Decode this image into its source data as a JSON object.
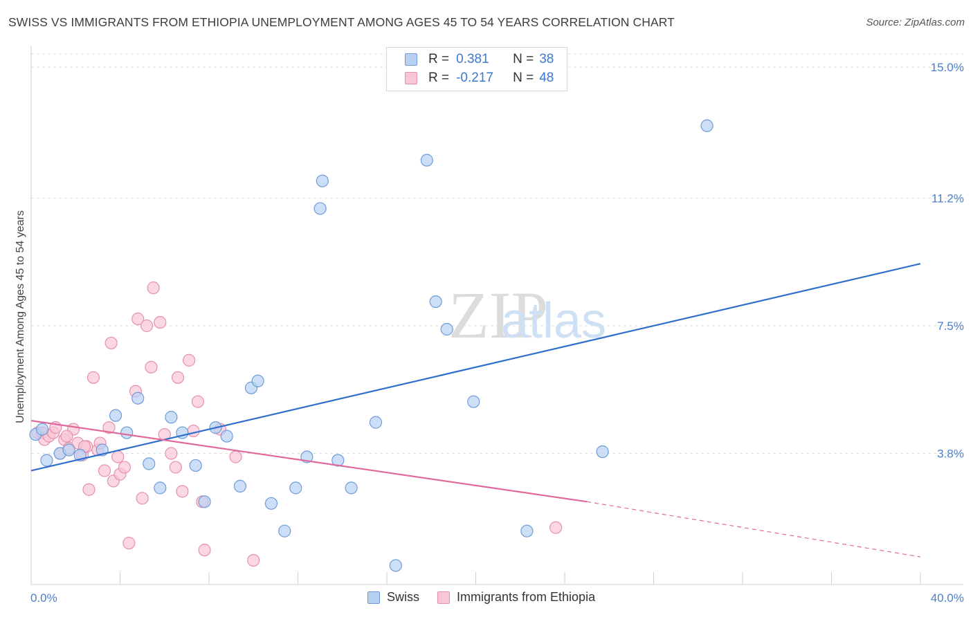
{
  "title": "SWISS VS IMMIGRANTS FROM ETHIOPIA UNEMPLOYMENT AMONG AGES 45 TO 54 YEARS CORRELATION CHART",
  "source": "Source: ZipAtlas.com",
  "watermark": {
    "zip": "ZIP",
    "atlas": "atlas"
  },
  "legend": {
    "swiss": {
      "r_label": "R =",
      "r_value": "0.381",
      "n_label": "N =",
      "n_value": "38"
    },
    "ethiopia": {
      "r_label": "R =",
      "r_value": "-0.217",
      "n_label": "N =",
      "n_value": "48"
    }
  },
  "colors": {
    "swiss_fill": "#b8d1f3",
    "swiss_stroke": "#6e9bd8",
    "swiss_line": "#2f6fcc",
    "eth_fill": "#f8c6d6",
    "eth_stroke": "#e690ae",
    "eth_line": "#e0689a",
    "grid": "#dddddd",
    "tick": "#4a7fcf"
  },
  "chart_data": {
    "type": "scatter",
    "title": "SWISS VS IMMIGRANTS FROM ETHIOPIA UNEMPLOYMENT AMONG AGES 45 TO 54 YEARS CORRELATION CHART",
    "xlabel": "",
    "ylabel": "Unemployment Among Ages 45 to 54 years",
    "xlim": [
      0,
      40
    ],
    "ylim": [
      0,
      15
    ],
    "x_tick_labels": [
      {
        "value": 0,
        "label": "0.0%"
      },
      {
        "value": 40,
        "label": "40.0%"
      }
    ],
    "y_ticks": [
      {
        "value": 3.8,
        "label": "3.8%"
      },
      {
        "value": 7.5,
        "label": "7.5%"
      },
      {
        "value": 11.2,
        "label": "11.2%"
      },
      {
        "value": 15.0,
        "label": "15.0%"
      }
    ],
    "series": [
      {
        "name": "Swiss",
        "r": 0.381,
        "n": 38,
        "points": [
          [
            0.2,
            4.35
          ],
          [
            0.7,
            3.6
          ],
          [
            1.3,
            3.8
          ],
          [
            1.7,
            3.9
          ],
          [
            2.2,
            3.75
          ],
          [
            3.2,
            3.9
          ],
          [
            3.8,
            4.9
          ],
          [
            4.3,
            4.4
          ],
          [
            4.8,
            5.4
          ],
          [
            5.3,
            3.5
          ],
          [
            5.8,
            2.8
          ],
          [
            6.3,
            4.85
          ],
          [
            6.8,
            4.4
          ],
          [
            7.4,
            3.45
          ],
          [
            7.8,
            2.4
          ],
          [
            8.3,
            4.55
          ],
          [
            8.8,
            4.3
          ],
          [
            9.4,
            2.85
          ],
          [
            9.9,
            5.7
          ],
          [
            10.2,
            5.9
          ],
          [
            10.8,
            2.35
          ],
          [
            11.4,
            1.55
          ],
          [
            11.9,
            2.8
          ],
          [
            12.4,
            3.7
          ],
          [
            13.0,
            10.9
          ],
          [
            13.1,
            11.7
          ],
          [
            13.8,
            3.6
          ],
          [
            14.4,
            2.8
          ],
          [
            15.5,
            4.7
          ],
          [
            16.4,
            0.55
          ],
          [
            17.8,
            12.3
          ],
          [
            18.2,
            8.2
          ],
          [
            18.7,
            7.4
          ],
          [
            19.9,
            5.3
          ],
          [
            22.3,
            1.55
          ],
          [
            25.7,
            3.85
          ],
          [
            30.4,
            13.3
          ],
          [
            0.5,
            4.5
          ]
        ]
      },
      {
        "name": "Immigrants from Ethiopia",
        "r": -0.217,
        "n": 48,
        "points": [
          [
            0.3,
            4.4
          ],
          [
            0.5,
            4.4
          ],
          [
            0.6,
            4.2
          ],
          [
            0.8,
            4.3
          ],
          [
            1.0,
            4.4
          ],
          [
            1.1,
            4.55
          ],
          [
            1.3,
            3.8
          ],
          [
            1.5,
            4.2
          ],
          [
            1.7,
            3.95
          ],
          [
            1.9,
            4.5
          ],
          [
            2.1,
            4.1
          ],
          [
            2.3,
            3.75
          ],
          [
            2.5,
            4.0
          ],
          [
            2.6,
            2.75
          ],
          [
            2.8,
            6.0
          ],
          [
            3.0,
            3.9
          ],
          [
            3.1,
            4.1
          ],
          [
            3.3,
            3.3
          ],
          [
            3.5,
            4.55
          ],
          [
            3.6,
            7.0
          ],
          [
            3.7,
            3.0
          ],
          [
            3.9,
            3.7
          ],
          [
            4.0,
            3.2
          ],
          [
            4.2,
            3.4
          ],
          [
            4.4,
            1.2
          ],
          [
            4.7,
            5.6
          ],
          [
            4.8,
            7.7
          ],
          [
            5.0,
            2.5
          ],
          [
            5.2,
            7.5
          ],
          [
            5.4,
            6.3
          ],
          [
            5.5,
            8.6
          ],
          [
            5.8,
            7.6
          ],
          [
            6.0,
            4.35
          ],
          [
            6.3,
            3.8
          ],
          [
            6.5,
            3.4
          ],
          [
            6.6,
            6.0
          ],
          [
            6.8,
            2.7
          ],
          [
            7.1,
            6.5
          ],
          [
            7.3,
            4.45
          ],
          [
            7.5,
            5.3
          ],
          [
            7.7,
            2.4
          ],
          [
            7.8,
            1.0
          ],
          [
            8.5,
            4.5
          ],
          [
            9.2,
            3.7
          ],
          [
            10.0,
            0.7
          ],
          [
            23.6,
            1.65
          ],
          [
            1.6,
            4.3
          ],
          [
            2.4,
            4.0
          ]
        ]
      }
    ],
    "trend_lines": [
      {
        "series": "Swiss",
        "x0": 0,
        "y0": 3.3,
        "x1": 40,
        "y1": 9.3
      },
      {
        "series": "Immigrants from Ethiopia",
        "x0": 0,
        "y0": 4.75,
        "x1": 25,
        "y1": 2.4,
        "dashed_to_x": 40,
        "dashed_to_y": 0.8
      }
    ]
  }
}
